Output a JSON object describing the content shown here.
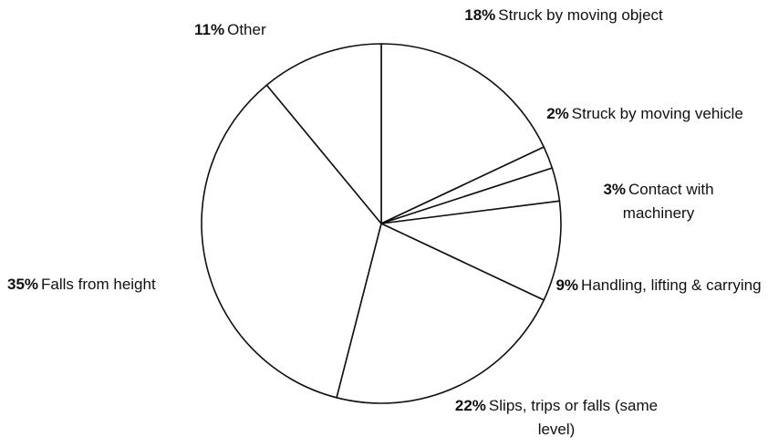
{
  "chart_data": {
    "type": "pie",
    "categories": [
      "Struck by moving object",
      "Struck by moving vehicle",
      "Contact with machinery",
      "Handling, lifting & carrying",
      "Slips, trips or falls (same level)",
      "Falls from height",
      "Other"
    ],
    "values": [
      18,
      2,
      3,
      9,
      22,
      35,
      11
    ],
    "value_labels": [
      "18%",
      "2%",
      "3%",
      "9%",
      "22%",
      "35%",
      "11%"
    ],
    "color": "#ffffff",
    "edge_color": "#111111"
  }
}
